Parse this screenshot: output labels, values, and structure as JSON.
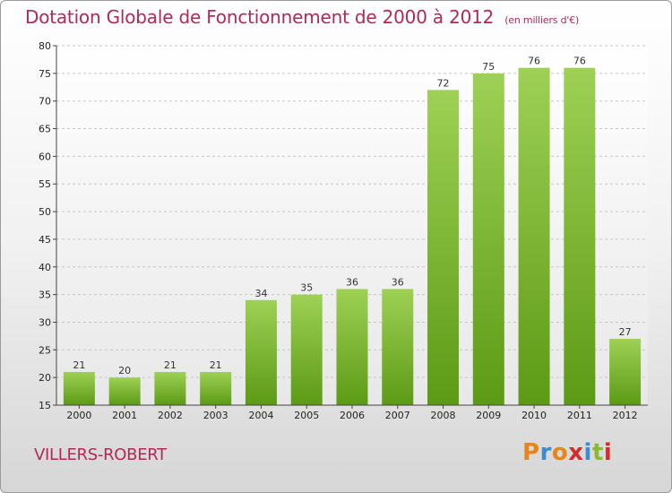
{
  "header": {
    "title": "Dotation Globale de Fonctionnement de 2000 à 2012",
    "subtitle": "(en milliers d'€)"
  },
  "footer": {
    "place": "VILLERS-ROBERT",
    "logo_text": "Proxiti",
    "logo_colors": [
      "#e8851a",
      "#3a8ecf",
      "#e8851a",
      "#d42b2b",
      "#3a8ecf",
      "#8ab92d",
      "#d42b2b"
    ]
  },
  "chart_data": {
    "type": "bar",
    "categories": [
      "2000",
      "2001",
      "2002",
      "2003",
      "2004",
      "2005",
      "2006",
      "2007",
      "2008",
      "2009",
      "2010",
      "2011",
      "2012"
    ],
    "values": [
      21,
      20,
      21,
      21,
      34,
      35,
      36,
      36,
      72,
      75,
      76,
      76,
      27
    ],
    "title": "Dotation Globale de Fonctionnement de 2000 à 2012",
    "subtitle": "(en milliers d'€)",
    "ylim": [
      15,
      80
    ],
    "yticks": [
      15,
      20,
      25,
      30,
      35,
      40,
      45,
      50,
      55,
      60,
      65,
      70,
      75,
      80
    ],
    "grid": true,
    "colors": {
      "bar_top": "#9ed155",
      "bar_bottom": "#5c9a15",
      "grid": "#c6c6c6",
      "title": "#b12a55"
    }
  }
}
